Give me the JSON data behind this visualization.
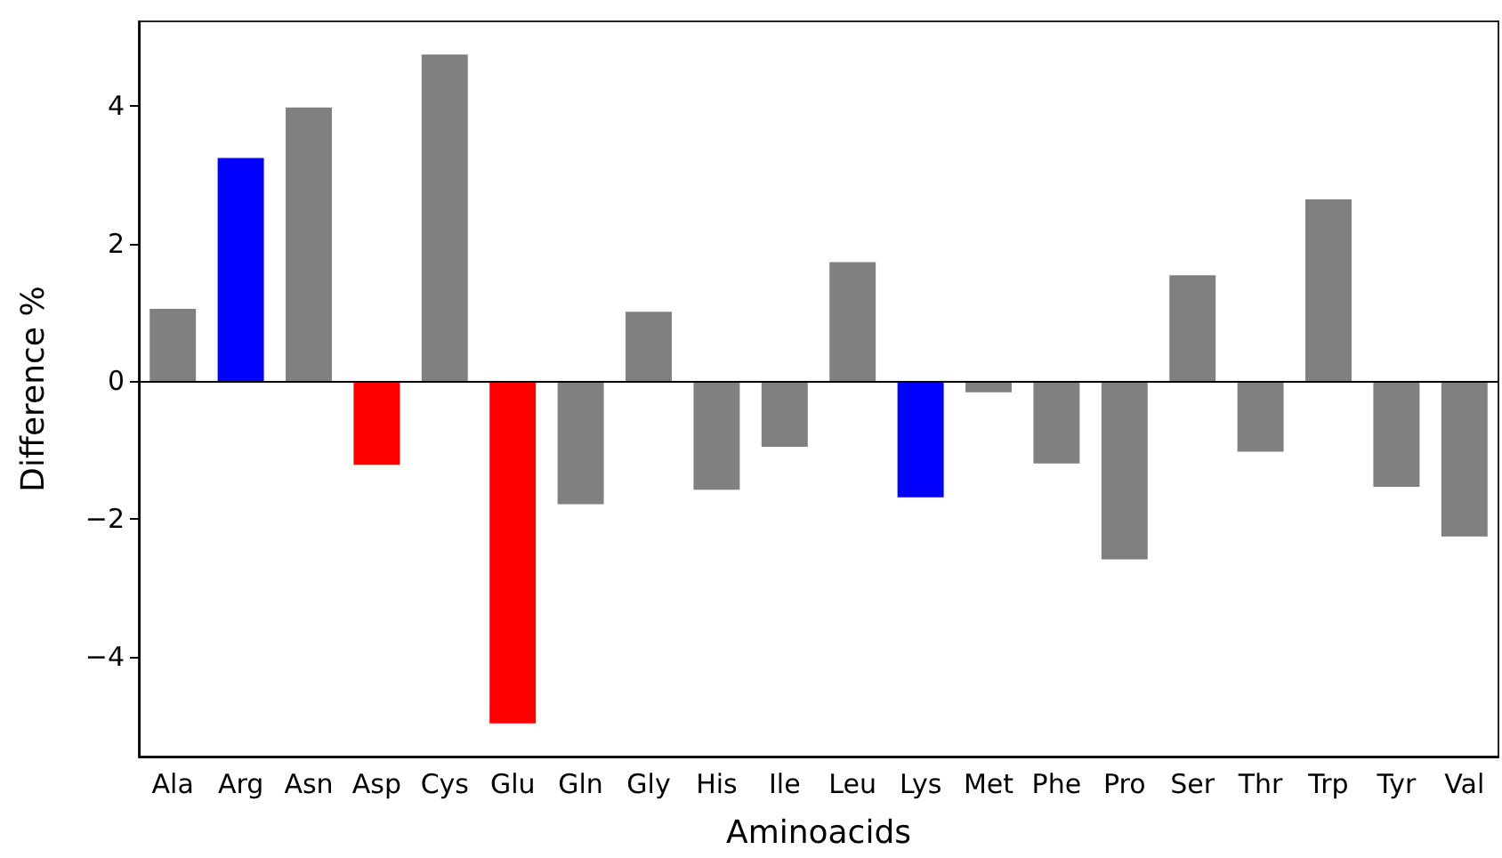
{
  "chart_data": {
    "type": "bar",
    "xlabel": "Aminoacids",
    "ylabel": "Difference %",
    "categories": [
      "Ala",
      "Arg",
      "Asn",
      "Asp",
      "Cys",
      "Glu",
      "Gln",
      "Gly",
      "His",
      "Ile",
      "Leu",
      "Lys",
      "Met",
      "Phe",
      "Pro",
      "Ser",
      "Thr",
      "Trp",
      "Tyr",
      "Val"
    ],
    "values": [
      1.05,
      3.24,
      3.97,
      -1.21,
      4.74,
      -4.96,
      -1.78,
      1.01,
      -1.57,
      -0.95,
      1.73,
      -1.68,
      -0.16,
      -1.19,
      -2.58,
      1.54,
      -1.02,
      2.64,
      -1.53,
      -2.25
    ],
    "colors": [
      "#808080",
      "#0000ff",
      "#808080",
      "#ff0000",
      "#808080",
      "#ff0000",
      "#808080",
      "#808080",
      "#808080",
      "#808080",
      "#808080",
      "#0000ff",
      "#808080",
      "#808080",
      "#808080",
      "#808080",
      "#808080",
      "#808080",
      "#808080",
      "#808080"
    ],
    "ylim": [
      -5.44,
      5.22
    ],
    "yticks": [
      {
        "value": -4,
        "label": "−4"
      },
      {
        "value": -2,
        "label": "−2"
      },
      0,
      2,
      4
    ],
    "ref_lines": [
      {
        "axis": "y",
        "value": 0,
        "color": "#000000"
      }
    ],
    "grid": false
  }
}
